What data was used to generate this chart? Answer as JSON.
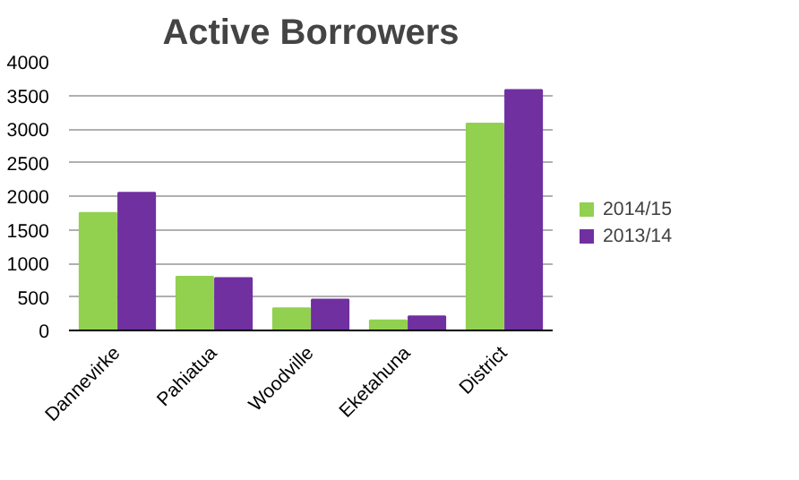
{
  "chart_data": {
    "type": "bar",
    "title": "Active Borrowers",
    "categories": [
      "Dannevirke",
      "Pahiatua",
      "Woodville",
      "Eketahuna",
      "District"
    ],
    "series": [
      {
        "name": "2014/15",
        "color": "#92d050",
        "values": [
          1750,
          800,
          330,
          150,
          3080
        ]
      },
      {
        "name": "2013/14",
        "color": "#7030a0",
        "values": [
          2050,
          780,
          460,
          210,
          3580
        ]
      }
    ],
    "ylim": [
      0,
      4000
    ],
    "yticks": [
      0,
      500,
      1000,
      1500,
      2000,
      2500,
      3000,
      3500,
      4000
    ],
    "grid": "y",
    "legend": "right"
  }
}
